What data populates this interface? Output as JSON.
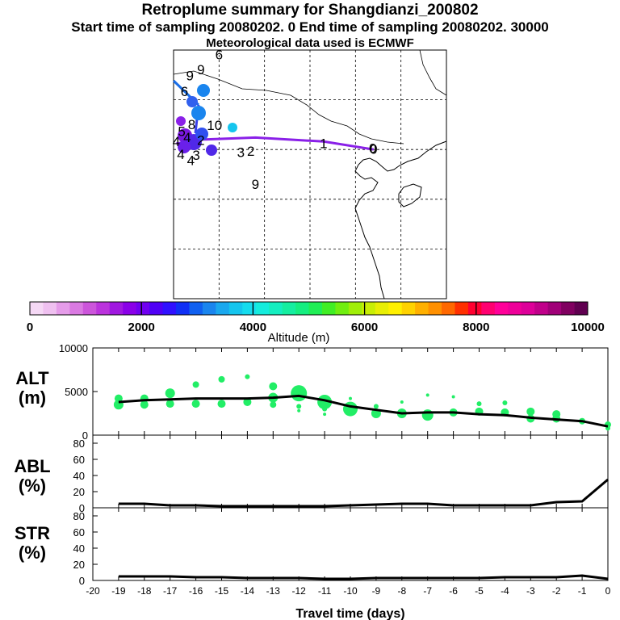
{
  "header": {
    "title": "Retroplume summary for Shangdianzi_200802",
    "subtitle": "Start time of sampling 20080202.     0     End time of sampling 20080202. 30000",
    "met_line": "Meteorological data used is ECMWF"
  },
  "chart_data": [
    {
      "type": "map",
      "id": "trajectory-map",
      "grid": true,
      "plume_labels": [
        {
          "label": "0",
          "lon": 122.0,
          "lat": 40.0,
          "alt": 1000
        },
        {
          "label": "1",
          "lon": 116.5,
          "lat": 40.6,
          "alt": 1700
        },
        {
          "label": "2",
          "lon": 108.5,
          "lat": 39.8,
          "alt": 2200
        },
        {
          "label": "3",
          "lon": 107.4,
          "lat": 39.7,
          "alt": 2400
        },
        {
          "label": "4",
          "lon": 101.5,
          "lat": 41.2,
          "alt": 2500
        },
        {
          "label": "5",
          "lon": 100.9,
          "lat": 41.8,
          "alt": 2600
        },
        {
          "label": "6",
          "lon": 101.2,
          "lat": 45.8,
          "alt": 2700
        },
        {
          "label": "8",
          "lon": 102.0,
          "lat": 42.5,
          "alt": 2800
        },
        {
          "label": "9",
          "lon": 101.8,
          "lat": 47.4,
          "alt": 2900
        },
        {
          "label": "10",
          "lon": 104.5,
          "lat": 42.4,
          "alt": 3300
        },
        {
          "label": "4",
          "lon": 100.3,
          "lat": 40.8,
          "alt": 3100
        },
        {
          "label": "4",
          "lon": 100.8,
          "lat": 39.5,
          "alt": 2900
        },
        {
          "label": "2",
          "lon": 103.0,
          "lat": 40.9,
          "alt": 2600
        },
        {
          "label": "3",
          "lon": 102.5,
          "lat": 39.4,
          "alt": 2700
        },
        {
          "label": "4",
          "lon": 101.9,
          "lat": 38.9,
          "alt": 2500
        },
        {
          "label": "9",
          "lon": 109.0,
          "lat": 36.5,
          "alt": 2300
        },
        {
          "label": "6",
          "lon": 105.0,
          "lat": 49.5,
          "alt": 2600
        },
        {
          "label": "9",
          "lon": 103.0,
          "lat": 48.0,
          "alt": 2900
        },
        {
          "label": "0",
          "lon": 121.9,
          "lat": 40.1,
          "alt": 1200
        }
      ],
      "trajectory": [
        {
          "lon": 122.0,
          "lat": 40.0
        },
        {
          "lon": 116.5,
          "lat": 40.8
        },
        {
          "lon": 109.0,
          "lat": 41.2
        },
        {
          "lon": 103.0,
          "lat": 41.0
        },
        {
          "lon": 100.3,
          "lat": 40.6
        }
      ]
    },
    {
      "type": "colorbar",
      "id": "altitude-colorbar",
      "xlabel": "Altitude (m)",
      "range": [
        0,
        10000
      ],
      "tick_labels": [
        "0",
        "2000",
        "4000",
        "6000",
        "8000",
        "10000"
      ],
      "colors": [
        "#f5d8f5",
        "#efc0f0",
        "#e59ce9",
        "#da7ae2",
        "#cc55db",
        "#bb33dd",
        "#a018e0",
        "#8a00e8",
        "#7000f0",
        "#5000f5",
        "#3010ff",
        "#1030f5",
        "#1060f0",
        "#1a85ee",
        "#1aa8ee",
        "#15c5ee",
        "#15dcee",
        "#15ecdd",
        "#15eec0",
        "#15eea0",
        "#15ee80",
        "#20ee55",
        "#40ee25",
        "#70ee10",
        "#a0ee08",
        "#c8ee05",
        "#e8ee05",
        "#fff000",
        "#ffd200",
        "#ffb000",
        "#ff9000",
        "#ff6800",
        "#ff3000",
        "#ff0030",
        "#ff0070",
        "#ff0099",
        "#ee0099",
        "#dd0099",
        "#c0008a",
        "#a00078",
        "#800060",
        "#600050"
      ]
    },
    {
      "type": "scatter",
      "id": "alt-panel",
      "ylabel": "ALT\n(m)",
      "xlim": [
        -20,
        0
      ],
      "ylim": [
        0,
        10000
      ],
      "ytick_labels": [
        "10000",
        "5000",
        "0"
      ],
      "series": [
        {
          "name": "mean altitude",
          "x": [
            -19,
            -18,
            -17,
            -16,
            -15,
            -14,
            -13,
            -12,
            -11,
            -10,
            -9,
            -8,
            -7,
            -6,
            -5,
            -4,
            -3,
            -2,
            -1,
            0
          ],
          "y": [
            3800,
            4000,
            4100,
            4200,
            4200,
            4200,
            4300,
            4500,
            4000,
            3300,
            2900,
            2500,
            2600,
            2600,
            2400,
            2300,
            2000,
            1800,
            1600,
            1000
          ]
        },
        {
          "name": "plume clusters",
          "points": [
            [
              -19,
              3500,
              6
            ],
            [
              -19,
              4200,
              5
            ],
            [
              -18,
              3500,
              5
            ],
            [
              -18,
              4200,
              5
            ],
            [
              -17,
              3600,
              5
            ],
            [
              -17,
              4800,
              6
            ],
            [
              -16,
              3600,
              5
            ],
            [
              -16,
              5800,
              4
            ],
            [
              -15,
              3600,
              5
            ],
            [
              -15,
              6400,
              4
            ],
            [
              -14,
              3800,
              5
            ],
            [
              -14,
              6700,
              3
            ],
            [
              -13,
              4300,
              6
            ],
            [
              -13,
              5600,
              5
            ],
            [
              -13,
              3500,
              4
            ],
            [
              -12,
              4800,
              10
            ],
            [
              -12,
              3300,
              3
            ],
            [
              -12,
              2800,
              2
            ],
            [
              -11,
              3800,
              9
            ],
            [
              -11,
              3000,
              3
            ],
            [
              -11,
              2400,
              2
            ],
            [
              -10,
              3000,
              9
            ],
            [
              -10,
              4200,
              2
            ],
            [
              -9,
              2500,
              6
            ],
            [
              -9,
              3300,
              3
            ],
            [
              -8,
              2500,
              6
            ],
            [
              -8,
              3800,
              2
            ],
            [
              -7,
              2300,
              7
            ],
            [
              -7,
              4600,
              2
            ],
            [
              -6,
              2600,
              5
            ],
            [
              -6,
              4400,
              2
            ],
            [
              -5,
              2700,
              5
            ],
            [
              -5,
              3600,
              3
            ],
            [
              -4,
              2600,
              5
            ],
            [
              -4,
              3700,
              3
            ],
            [
              -3,
              2700,
              5
            ],
            [
              -3,
              1900,
              5
            ],
            [
              -2,
              2400,
              5
            ],
            [
              -2,
              1900,
              5
            ],
            [
              -1,
              1600,
              4
            ],
            [
              0,
              1200,
              4
            ],
            [
              0,
              800,
              3
            ]
          ]
        }
      ]
    },
    {
      "type": "line",
      "id": "abl-panel",
      "ylabel": "ABL\n(%)",
      "xlim": [
        -20,
        0
      ],
      "ylim": [
        0,
        90
      ],
      "ytick_labels": [
        "80",
        "60",
        "40",
        "20",
        "0"
      ],
      "x": [
        -19,
        -18,
        -17,
        -16,
        -15,
        -14,
        -13,
        -12,
        -11,
        -10,
        -9,
        -8,
        -7,
        -6,
        -5,
        -4,
        -3,
        -2,
        -1,
        0
      ],
      "values": [
        5,
        5,
        3,
        3,
        2,
        2,
        2,
        2,
        2,
        3,
        4,
        5,
        5,
        3,
        3,
        3,
        3,
        7,
        8,
        35
      ]
    },
    {
      "type": "line",
      "id": "str-panel",
      "ylabel": "STR\n(%)",
      "xlim": [
        -20,
        0
      ],
      "ylim": [
        0,
        90
      ],
      "ytick_labels": [
        "80",
        "60",
        "40",
        "20",
        "0"
      ],
      "xlabel": "Travel time (days)",
      "xtick_labels": [
        "-20",
        "-19",
        "-18",
        "-17",
        "-16",
        "-15",
        "-14",
        "-13",
        "-12",
        "-11",
        "-10",
        "-9",
        "-8",
        "-7",
        "-6",
        "-5",
        "-4",
        "-3",
        "-2",
        "-1",
        "0"
      ],
      "x": [
        -19,
        -18,
        -17,
        -16,
        -15,
        -14,
        -13,
        -12,
        -11,
        -10,
        -9,
        -8,
        -7,
        -6,
        -5,
        -4,
        -3,
        -2,
        -1,
        0
      ],
      "values": [
        5,
        5,
        5,
        4,
        4,
        3,
        3,
        3,
        2,
        2,
        3,
        3,
        3,
        3,
        3,
        4,
        4,
        4,
        6,
        2
      ]
    }
  ]
}
